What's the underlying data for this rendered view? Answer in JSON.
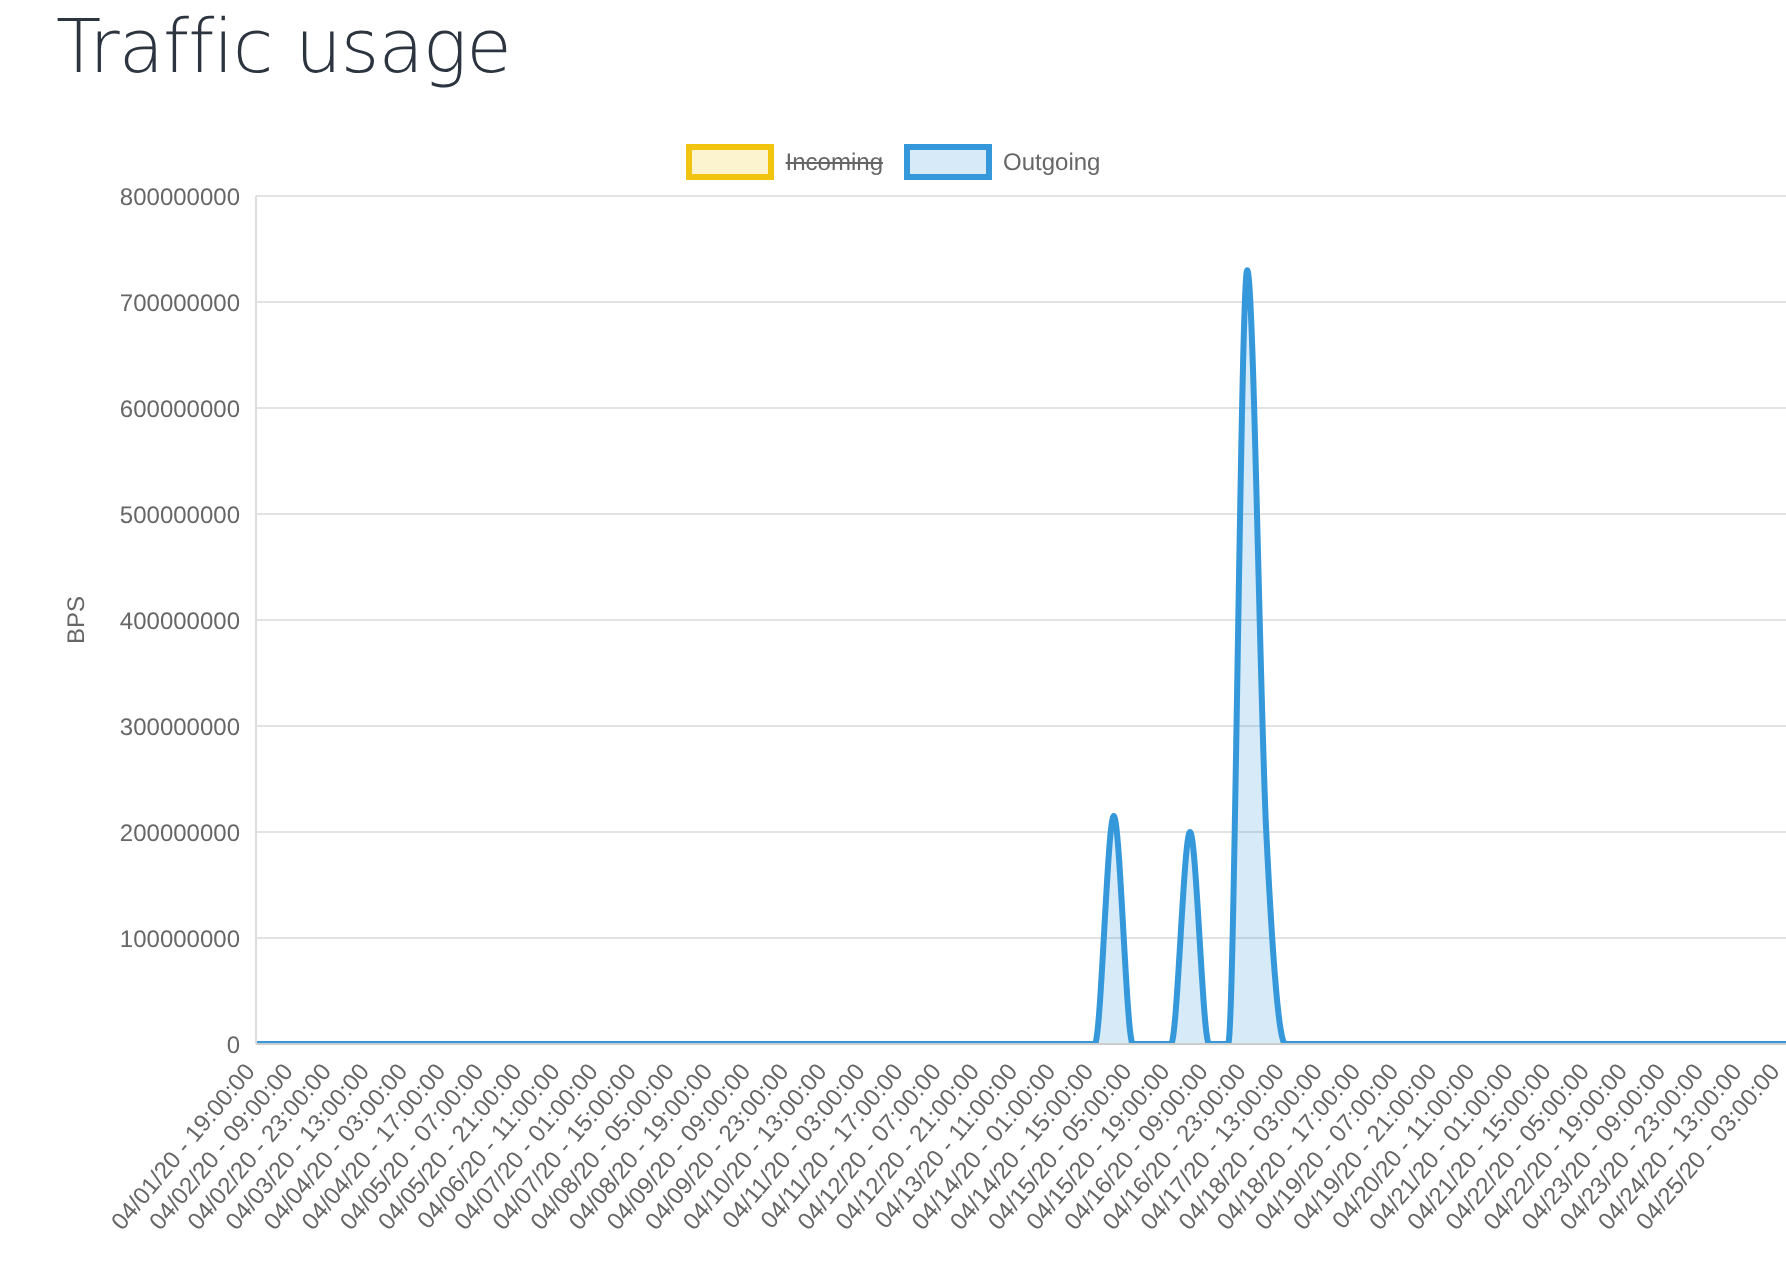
{
  "chart_data": {
    "type": "area",
    "title": "Traffic usage",
    "ylabel": "BPS",
    "categories": [
      "04/01/20 - 19:00:00",
      null,
      "04/02/20 - 09:00:00",
      null,
      "04/02/20 - 23:00:00",
      null,
      "04/03/20 - 13:00:00",
      null,
      "04/04/20 - 03:00:00",
      null,
      "04/04/20 - 17:00:00",
      null,
      "04/05/20 - 07:00:00",
      null,
      "04/05/20 - 21:00:00",
      null,
      "04/06/20 - 11:00:00",
      null,
      "04/07/20 - 01:00:00",
      null,
      "04/07/20 - 15:00:00",
      null,
      "04/08/20 - 05:00:00",
      null,
      "04/08/20 - 19:00:00",
      null,
      "04/09/20 - 09:00:00",
      null,
      "04/09/20 - 23:00:00",
      null,
      "04/10/20 - 13:00:00",
      null,
      "04/11/20 - 03:00:00",
      null,
      "04/11/20 - 17:00:00",
      null,
      "04/12/20 - 07:00:00",
      null,
      "04/12/20 - 21:00:00",
      null,
      "04/13/20 - 11:00:00",
      null,
      "04/14/20 - 01:00:00",
      null,
      "04/14/20 - 15:00:00",
      null,
      "04/15/20 - 05:00:00",
      null,
      "04/15/20 - 19:00:00",
      null,
      "04/16/20 - 09:00:00",
      null,
      "04/16/20 - 23:00:00",
      null,
      "04/17/20 - 13:00:00",
      null,
      "04/18/20 - 03:00:00",
      null,
      "04/18/20 - 17:00:00",
      null,
      "04/19/20 - 07:00:00",
      null,
      "04/19/20 - 21:00:00",
      null,
      "04/20/20 - 11:00:00",
      null,
      "04/21/20 - 01:00:00",
      null,
      "04/21/20 - 15:00:00",
      null,
      "04/22/20 - 05:00:00",
      null,
      "04/22/20 - 19:00:00",
      null,
      "04/23/20 - 09:00:00",
      null,
      "04/23/20 - 23:00:00",
      null,
      "04/24/20 - 13:00:00",
      null,
      "04/25/20 - 03:00:00",
      null
    ],
    "series": [
      {
        "name": "Incoming",
        "color": "#f1c40f",
        "values": [
          null,
          null,
          null,
          null,
          null,
          null,
          null,
          null,
          null,
          null,
          null,
          null,
          null,
          null,
          null,
          null,
          null,
          null,
          null,
          null,
          null,
          null,
          null,
          null,
          null,
          null,
          null,
          null,
          null,
          null,
          null,
          null,
          null,
          null,
          null,
          null,
          null,
          null,
          null,
          null,
          null,
          null,
          null,
          null,
          null,
          null,
          null,
          null,
          null,
          null,
          null,
          null,
          null,
          null,
          null,
          null,
          null,
          null,
          null,
          null,
          null,
          null,
          null,
          null,
          null,
          null,
          null,
          null,
          null,
          null,
          null,
          null,
          null,
          null,
          null,
          null,
          null,
          null,
          null,
          null,
          null,
          null
        ]
      },
      {
        "name": "Outgoing",
        "color": "#3498db",
        "values": [
          0,
          0,
          0,
          0,
          0,
          0,
          0,
          0,
          0,
          0,
          0,
          0,
          0,
          0,
          0,
          0,
          0,
          0,
          0,
          0,
          0,
          0,
          0,
          0,
          0,
          0,
          0,
          0,
          0,
          0,
          0,
          0,
          0,
          0,
          0,
          0,
          0,
          0,
          0,
          0,
          0,
          0,
          0,
          0,
          0,
          215000000,
          0,
          0,
          0,
          200000000,
          0,
          0,
          730000000,
          200000000,
          0,
          0,
          0,
          0,
          0,
          0,
          0,
          0,
          0,
          0,
          0,
          0,
          0,
          0,
          0,
          0,
          0,
          0,
          0,
          0,
          0,
          0,
          0,
          0,
          0,
          0,
          0,
          0
        ]
      }
    ],
    "ylim": [
      0,
      800000000
    ],
    "yticks": [
      0,
      100000000,
      200000000,
      300000000,
      400000000,
      500000000,
      600000000,
      700000000,
      800000000
    ],
    "grid": "y",
    "legend": "top",
    "marker": "none"
  }
}
